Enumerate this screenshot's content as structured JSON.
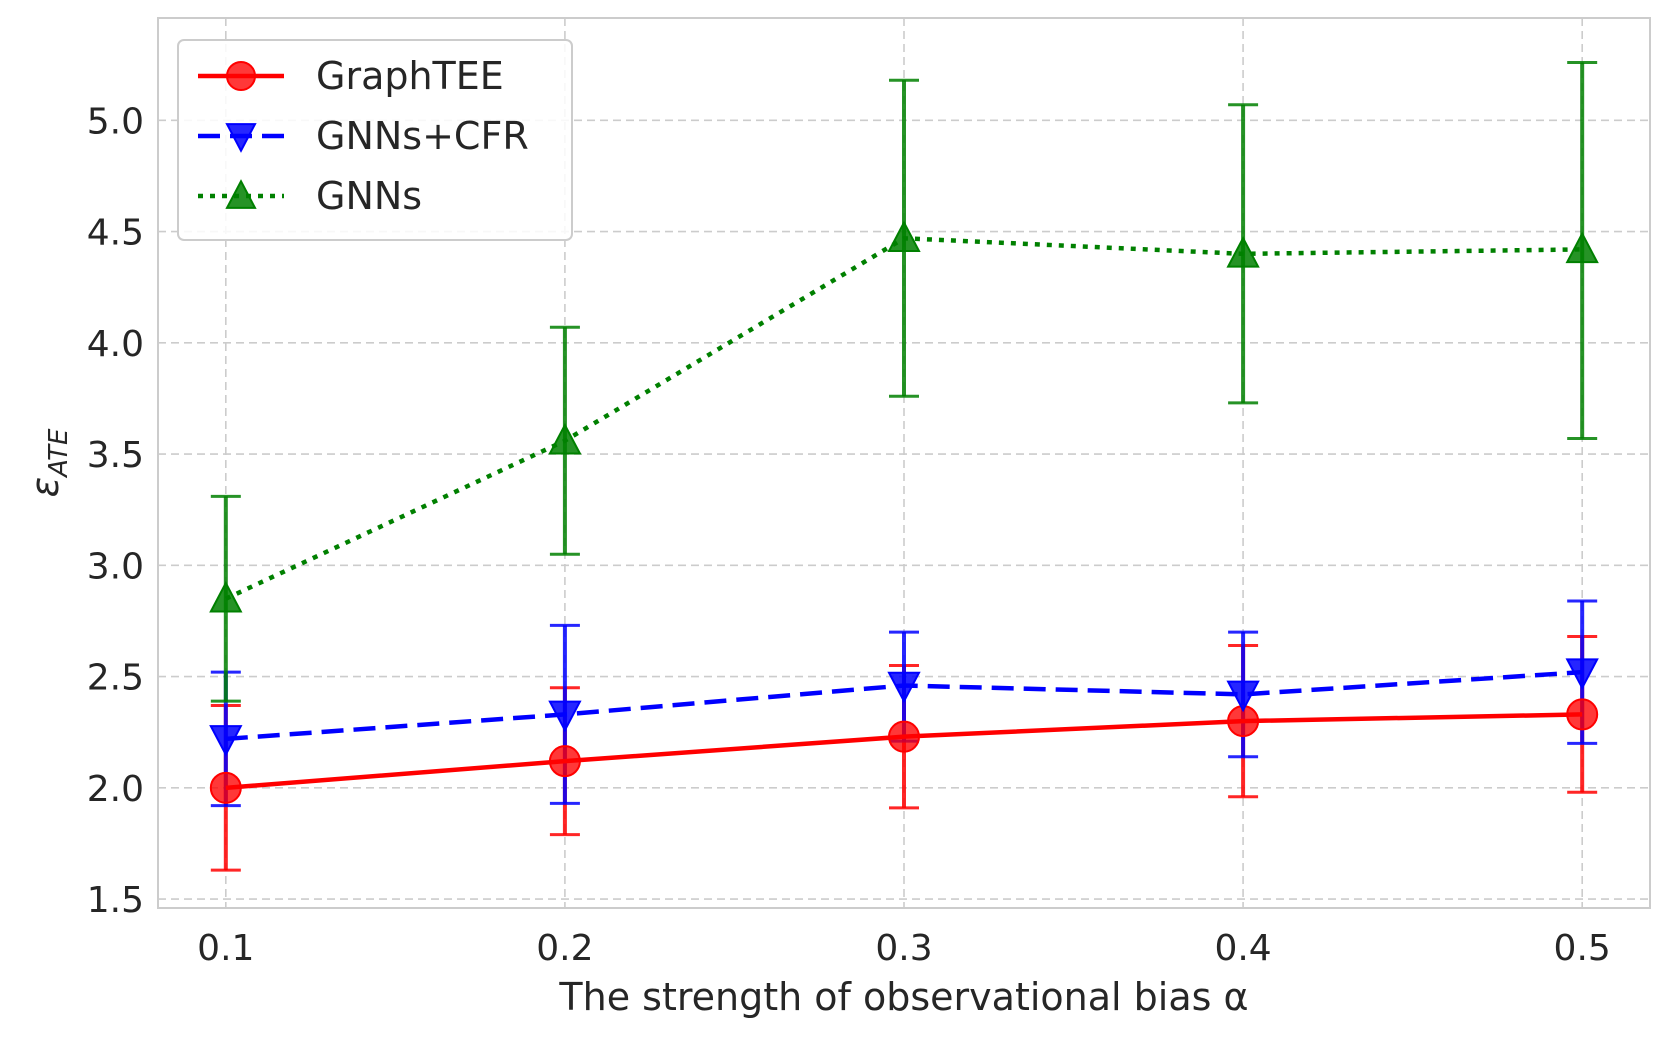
{
  "chart_data": {
    "type": "line",
    "title": "",
    "xlabel": "The strength of observational bias α",
    "ylabel_main": "ε",
    "ylabel_sub": "ATE",
    "x": [
      0.1,
      0.2,
      0.3,
      0.4,
      0.5
    ],
    "x_tick_labels": [
      "0.1",
      "0.2",
      "0.3",
      "0.4",
      "0.5"
    ],
    "y_ticks": [
      1.5,
      2.0,
      2.5,
      3.0,
      3.5,
      4.0,
      4.5,
      5.0
    ],
    "y_tick_labels": [
      "1.5",
      "2.0",
      "2.5",
      "3.0",
      "3.5",
      "4.0",
      "4.5",
      "5.0"
    ],
    "xlim": [
      0.08,
      0.52
    ],
    "ylim": [
      1.46,
      5.46
    ],
    "grid": true,
    "legend_position": "top-left",
    "series": [
      {
        "name": "GraphTEE",
        "color": "#ff0000",
        "line_style": "solid",
        "marker": "circle",
        "values": [
          2.0,
          2.12,
          2.23,
          2.3,
          2.33
        ],
        "err_low": [
          1.63,
          1.79,
          1.91,
          1.96,
          1.98
        ],
        "err_high": [
          2.37,
          2.45,
          2.55,
          2.64,
          2.68
        ]
      },
      {
        "name": "GNNs+CFR",
        "color": "#0000ff",
        "line_style": "dashed",
        "marker": "triangle-down",
        "values": [
          2.22,
          2.33,
          2.46,
          2.42,
          2.52
        ],
        "err_low": [
          1.92,
          1.93,
          2.21,
          2.14,
          2.2
        ],
        "err_high": [
          2.52,
          2.73,
          2.7,
          2.7,
          2.84
        ]
      },
      {
        "name": "GNNs",
        "color": "#008000",
        "line_style": "dotted",
        "marker": "triangle-up",
        "values": [
          2.85,
          3.56,
          4.47,
          4.4,
          4.42
        ],
        "err_low": [
          2.39,
          3.05,
          3.76,
          3.73,
          3.57
        ],
        "err_high": [
          3.31,
          4.07,
          5.18,
          5.07,
          5.26
        ]
      }
    ]
  }
}
